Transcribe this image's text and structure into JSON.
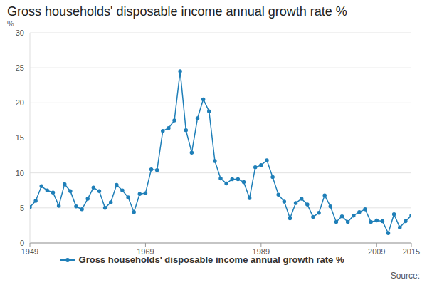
{
  "chart_data": {
    "type": "line",
    "title": "Gross households' disposable income annual growth rate %",
    "y_label": "%",
    "source": "Source:",
    "x": [
      1949,
      1950,
      1951,
      1952,
      1953,
      1954,
      1955,
      1956,
      1957,
      1958,
      1959,
      1960,
      1961,
      1962,
      1963,
      1964,
      1965,
      1966,
      1967,
      1968,
      1969,
      1970,
      1971,
      1972,
      1973,
      1974,
      1975,
      1976,
      1977,
      1978,
      1979,
      1980,
      1981,
      1982,
      1983,
      1984,
      1985,
      1986,
      1987,
      1988,
      1989,
      1990,
      1991,
      1992,
      1993,
      1994,
      1995,
      1996,
      1997,
      1998,
      1999,
      2000,
      2001,
      2002,
      2003,
      2004,
      2005,
      2006,
      2007,
      2008,
      2009,
      2010,
      2011,
      2012,
      2013,
      2014,
      2015
    ],
    "series": [
      {
        "name": "Gross households' disposable income annual growth rate %",
        "color": "#1f7fb8",
        "marker": "circle",
        "values": [
          5.1,
          6.0,
          8.1,
          7.5,
          7.2,
          5.3,
          8.4,
          7.4,
          5.2,
          4.8,
          6.3,
          7.9,
          7.4,
          5.0,
          5.8,
          8.3,
          7.5,
          6.5,
          4.4,
          7.0,
          7.1,
          10.5,
          10.4,
          16.0,
          16.4,
          17.5,
          24.5,
          16.1,
          12.9,
          17.8,
          20.5,
          18.8,
          11.7,
          9.2,
          8.5,
          9.1,
          9.1,
          8.7,
          6.4,
          10.8,
          11.1,
          11.8,
          9.4,
          6.9,
          5.9,
          3.5,
          5.7,
          6.3,
          5.5,
          3.7,
          4.3,
          6.8,
          5.2,
          3.0,
          3.8,
          3.0,
          3.9,
          4.4,
          4.8,
          3.0,
          3.2,
          3.1,
          1.4,
          4.1,
          2.2,
          3.1,
          3.9
        ]
      }
    ],
    "xlim": [
      1949,
      2015
    ],
    "xticks": [
      1949,
      1969,
      1989,
      2009,
      2015
    ],
    "ylim": [
      0,
      30
    ],
    "yticks": [
      0,
      5,
      10,
      15,
      20,
      25,
      30
    ],
    "grid": true,
    "legend": "bottom"
  }
}
